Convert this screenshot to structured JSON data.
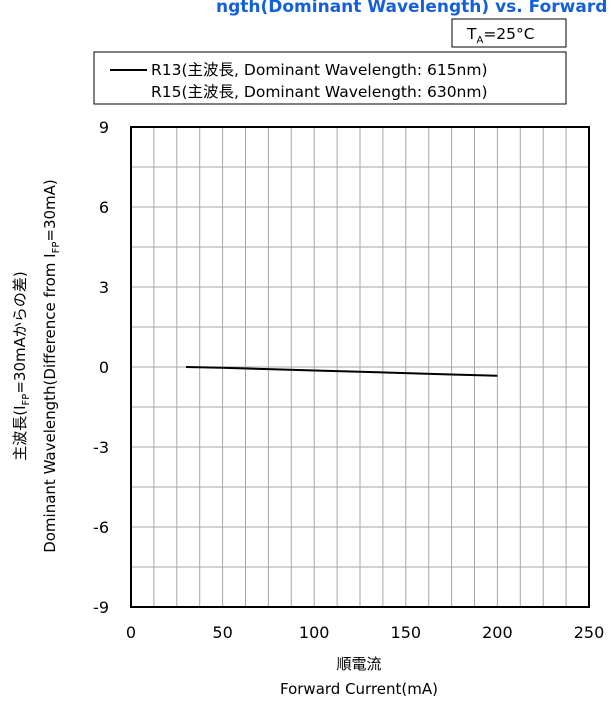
{
  "chart_data": {
    "type": "line",
    "title_fragment": "ngth(Dominant Wavelength) vs. Forward Current(Typ.)",
    "condition": {
      "prefix": "T",
      "subscript": "A",
      "suffix": "=25°C"
    },
    "legend": {
      "placement": "top",
      "entries": [
        "R13(主波長, Dominant Wavelength: 615nm)",
        "R15(主波長, Dominant Wavelength: 630nm)"
      ]
    },
    "xlabel_jp": "順電流",
    "xlabel_en": "Forward Current(mA)",
    "ylabel_jp": {
      "prefix": "主波長(I",
      "subscript": "FP",
      "suffix": "=30mAからの差)"
    },
    "ylabel_en": {
      "prefix": "Dominant Wavelength(Difference from I",
      "subscript": "FP",
      "suffix": "=30mA)"
    },
    "xlim": [
      0,
      250
    ],
    "ylim": [
      -9,
      9
    ],
    "x_ticks": [
      0,
      50,
      100,
      150,
      200,
      250
    ],
    "y_ticks": [
      9,
      6,
      3,
      0,
      -3,
      -6,
      -9
    ],
    "x_tick_labels": [
      "0",
      "50",
      "100",
      "150",
      "200",
      "250"
    ],
    "y_tick_labels": [
      "9",
      "6",
      "3",
      "0",
      "-3",
      "-6",
      "-9"
    ],
    "x_grid_step": 12.5,
    "y_grid_step": 1.5,
    "grid": true,
    "series": [
      {
        "name": "R13(主波長, Dominant Wavelength: 615nm)",
        "color": "#000000",
        "x": [
          30,
          50,
          75,
          100,
          125,
          150,
          175,
          200
        ],
        "y": [
          0.0,
          -0.03,
          -0.08,
          -0.13,
          -0.18,
          -0.23,
          -0.28,
          -0.33
        ]
      }
    ]
  }
}
